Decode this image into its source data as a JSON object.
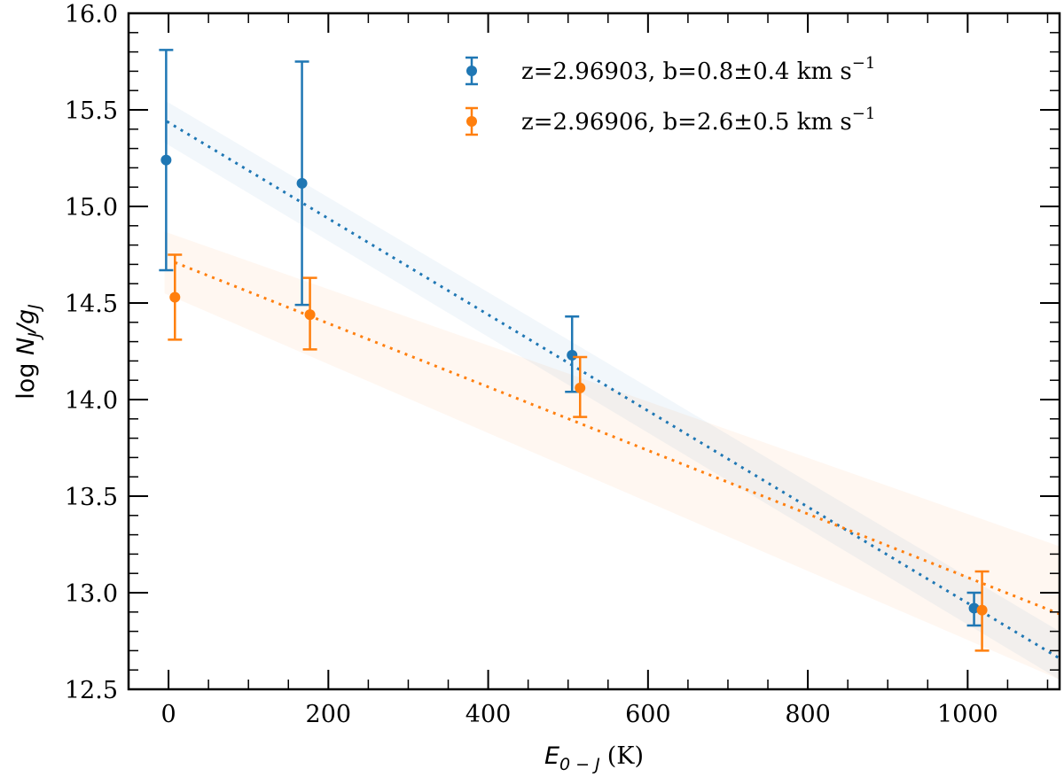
{
  "chart_data": {
    "type": "scatter",
    "title": "",
    "xlabel": {
      "main": "E",
      "sub": "0 − J",
      "unit": "(K)"
    },
    "ylabel": {
      "main": "log ",
      "var": "N",
      "sub1": "J",
      "slash": "/g",
      "sub2": "J"
    },
    "xlim": [
      -50,
      1115
    ],
    "ylim": [
      12.5,
      16.0
    ],
    "xticks": [
      0,
      200,
      400,
      600,
      800,
      1000
    ],
    "xtick_labels": [
      "0",
      "200",
      "400",
      "600",
      "800",
      "1000"
    ],
    "yticks": [
      12.5,
      13.0,
      13.5,
      14.0,
      14.5,
      15.0,
      15.5,
      16.0
    ],
    "ytick_labels": [
      "12.5",
      "13.0",
      "13.5",
      "14.0",
      "14.5",
      "15.0",
      "15.5",
      "16.0"
    ],
    "grid": false,
    "legend_position": "top-right",
    "series": [
      {
        "name": "z=2.96903, b=0.8±0.4 km s",
        "name_sup": "−1",
        "color": "#1f77b4",
        "band_color": "#1f77b4",
        "points": [
          {
            "x": -3,
            "y": 15.24,
            "ylo": 14.67,
            "yhi": 15.81
          },
          {
            "x": 167,
            "y": 15.12,
            "ylo": 14.49,
            "yhi": 15.75
          },
          {
            "x": 505,
            "y": 14.23,
            "ylo": 14.04,
            "yhi": 14.43
          },
          {
            "x": 1008,
            "y": 12.92,
            "ylo": 12.83,
            "yhi": 13.0
          }
        ],
        "fit": {
          "x": [
            -2,
            1115
          ],
          "y": [
            15.44,
            12.66
          ]
        },
        "band": {
          "x": [
            -5,
            1115
          ],
          "upper": [
            15.55,
            12.8
          ],
          "lower": [
            15.33,
            12.55
          ]
        }
      },
      {
        "name": "z=2.96906, b=2.6±0.5 km s",
        "name_sup": "−1",
        "color": "#ff7f0e",
        "band_color": "#ff7f0e",
        "points": [
          {
            "x": 8,
            "y": 14.53,
            "ylo": 14.31,
            "yhi": 14.75
          },
          {
            "x": 177,
            "y": 14.44,
            "ylo": 14.26,
            "yhi": 14.63
          },
          {
            "x": 515,
            "y": 14.06,
            "ylo": 13.91,
            "yhi": 14.22
          },
          {
            "x": 1018,
            "y": 12.91,
            "ylo": 12.7,
            "yhi": 13.11
          }
        ],
        "fit": {
          "x": [
            8,
            1115
          ],
          "y": [
            14.71,
            12.89
          ]
        },
        "band": {
          "x": [
            -5,
            1115
          ],
          "upper": [
            14.87,
            13.24
          ],
          "lower": [
            14.55,
            12.55
          ]
        }
      }
    ]
  }
}
